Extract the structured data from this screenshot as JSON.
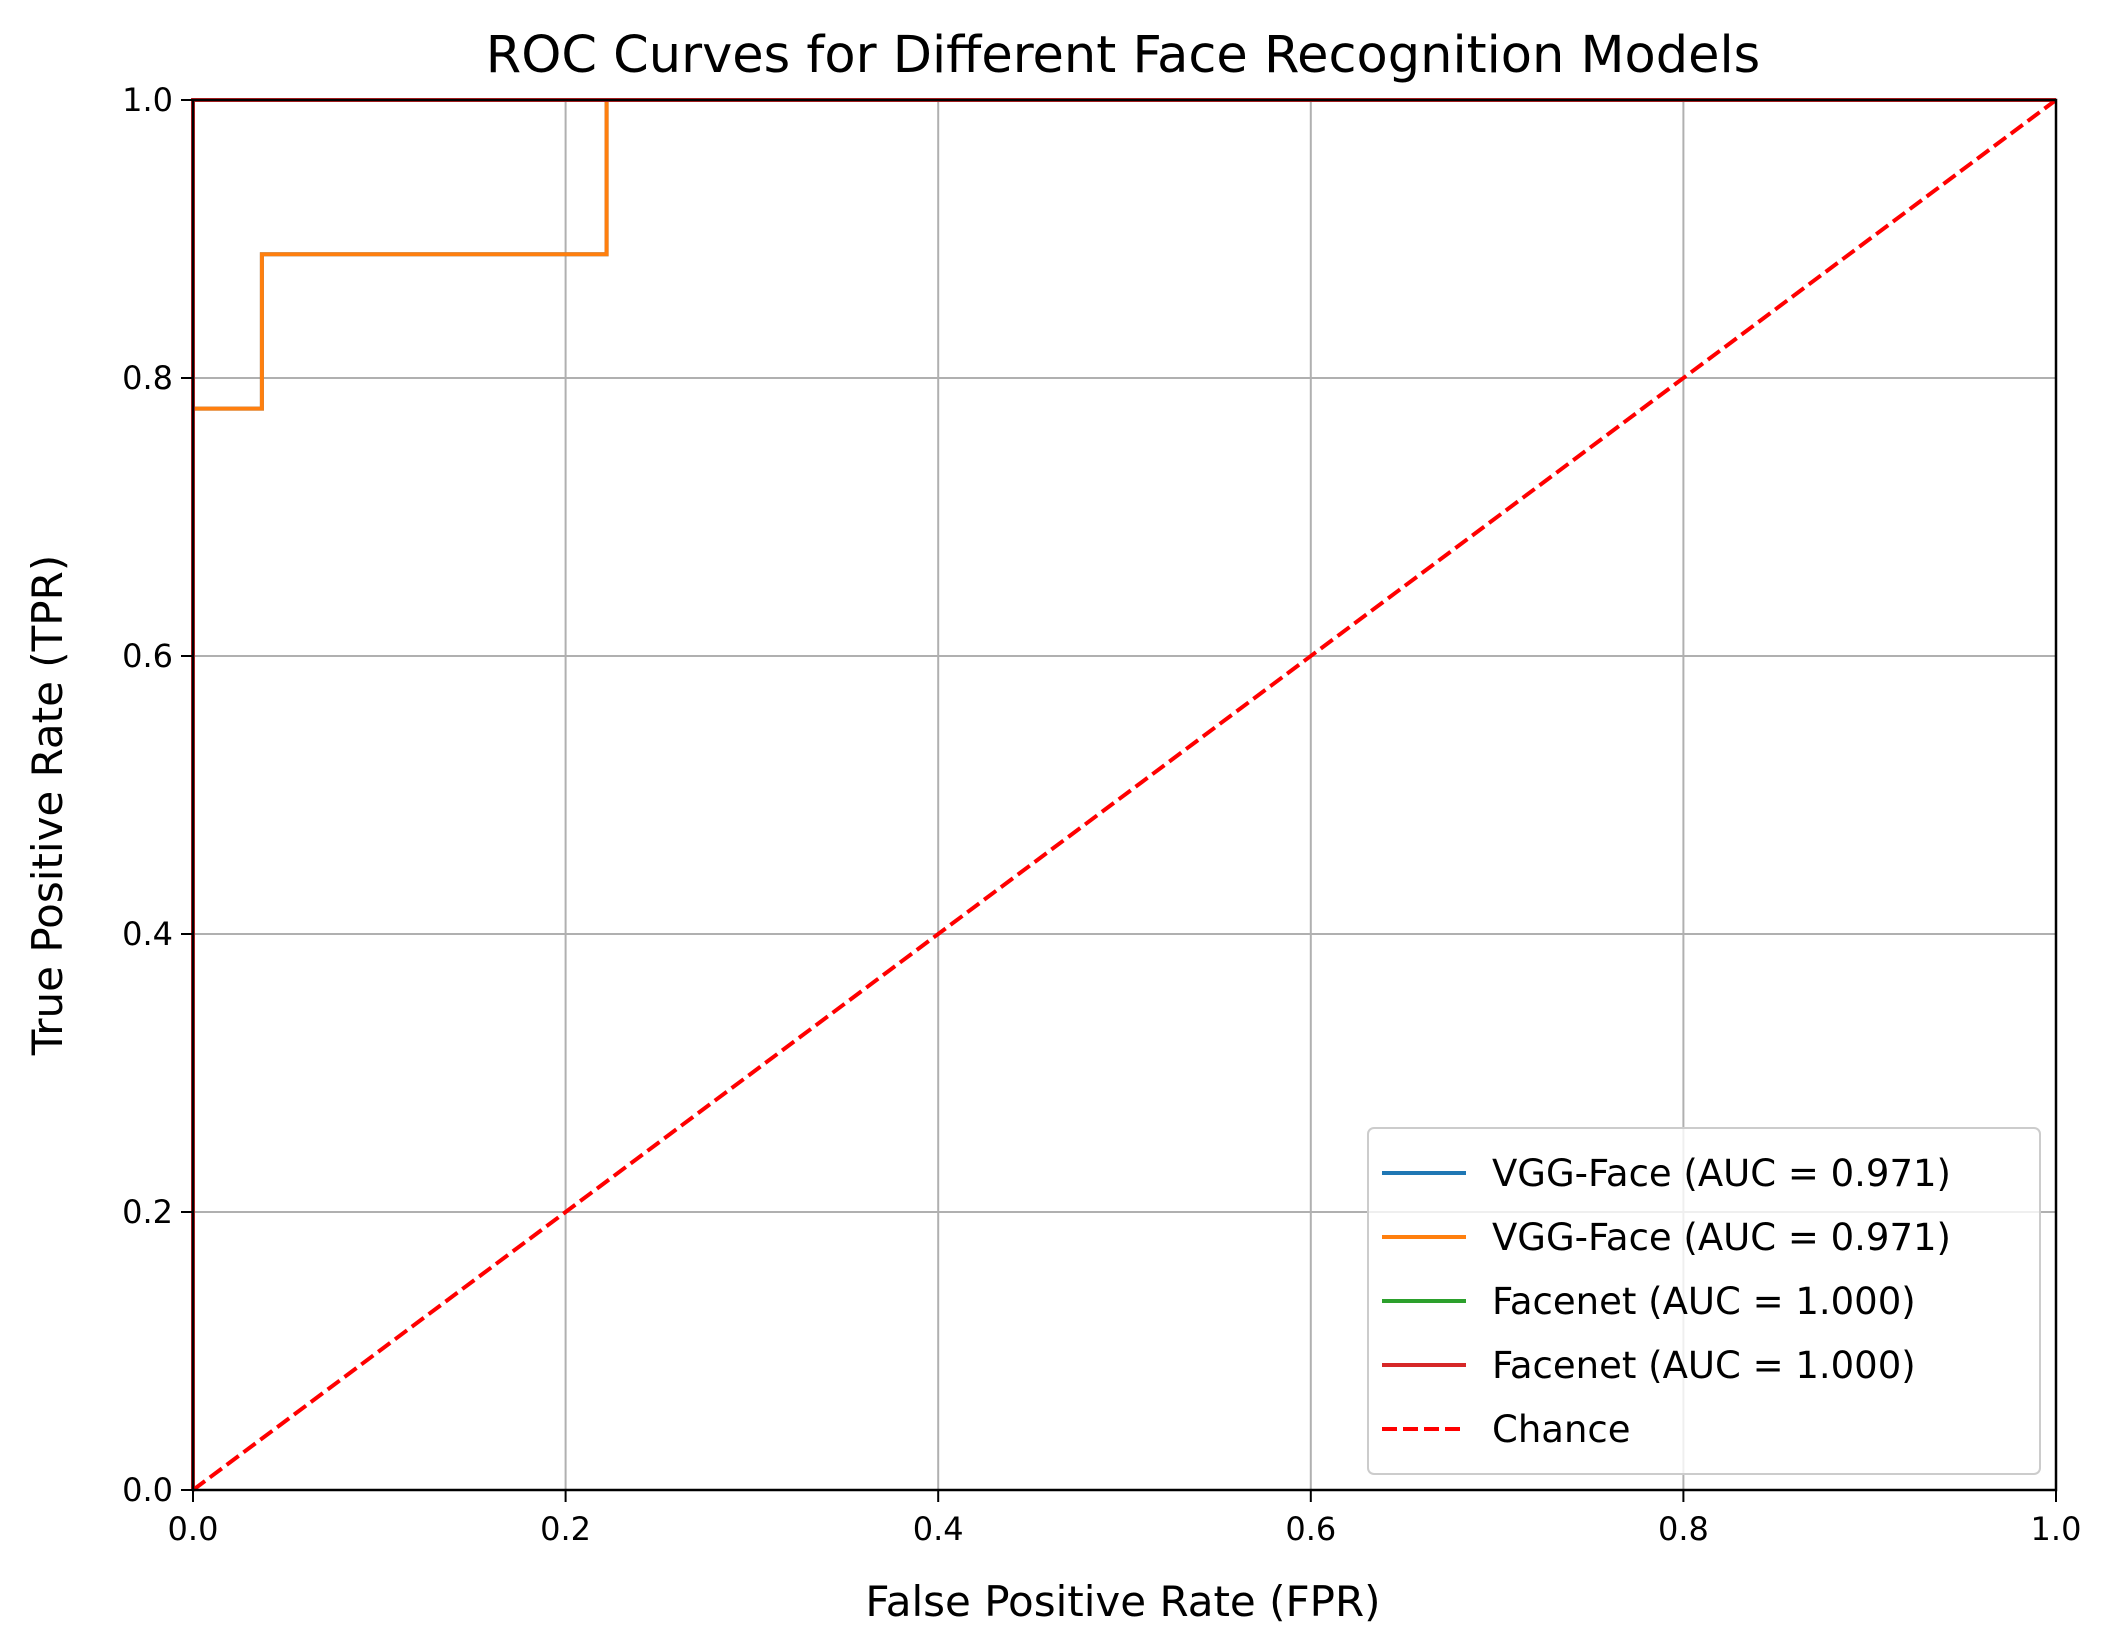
{
  "chart_data": {
    "type": "line",
    "title": "ROC Curves for Different Face Recognition Models",
    "xlabel": "False Positive Rate (FPR)",
    "ylabel": "True Positive Rate (TPR)",
    "xlim": [
      0,
      1
    ],
    "ylim": [
      0,
      1
    ],
    "xticks": [
      "0.0",
      "0.2",
      "0.4",
      "0.6",
      "0.8",
      "1.0"
    ],
    "yticks": [
      "0.0",
      "0.2",
      "0.4",
      "0.6",
      "0.8",
      "1.0"
    ],
    "grid": true,
    "legend_position": "lower right",
    "series": [
      {
        "name": "VGG-Face (AUC = 0.971)",
        "color": "#1f77b4",
        "line_style": "solid",
        "x": [
          0.0,
          0.0,
          0.037,
          0.037,
          0.222,
          0.222,
          1.0
        ],
        "y": [
          0.0,
          0.778,
          0.778,
          0.889,
          0.889,
          1.0,
          1.0
        ]
      },
      {
        "name": "VGG-Face (AUC = 0.971)",
        "color": "#ff7f0e",
        "line_style": "solid",
        "x": [
          0.0,
          0.0,
          0.037,
          0.037,
          0.222,
          0.222,
          1.0
        ],
        "y": [
          0.0,
          0.778,
          0.778,
          0.889,
          0.889,
          1.0,
          1.0
        ]
      },
      {
        "name": "Facenet (AUC = 1.000)",
        "color": "#2ca02c",
        "line_style": "solid",
        "x": [
          0.0,
          0.0,
          1.0
        ],
        "y": [
          0.0,
          1.0,
          1.0
        ]
      },
      {
        "name": "Facenet (AUC = 1.000)",
        "color": "#d62728",
        "line_style": "solid",
        "x": [
          0.0,
          0.0,
          1.0
        ],
        "y": [
          0.0,
          1.0,
          1.0
        ]
      },
      {
        "name": "Chance",
        "color": "#ff0000",
        "line_style": "dashed",
        "x": [
          0.0,
          1.0
        ],
        "y": [
          0.0,
          1.0
        ]
      }
    ]
  }
}
